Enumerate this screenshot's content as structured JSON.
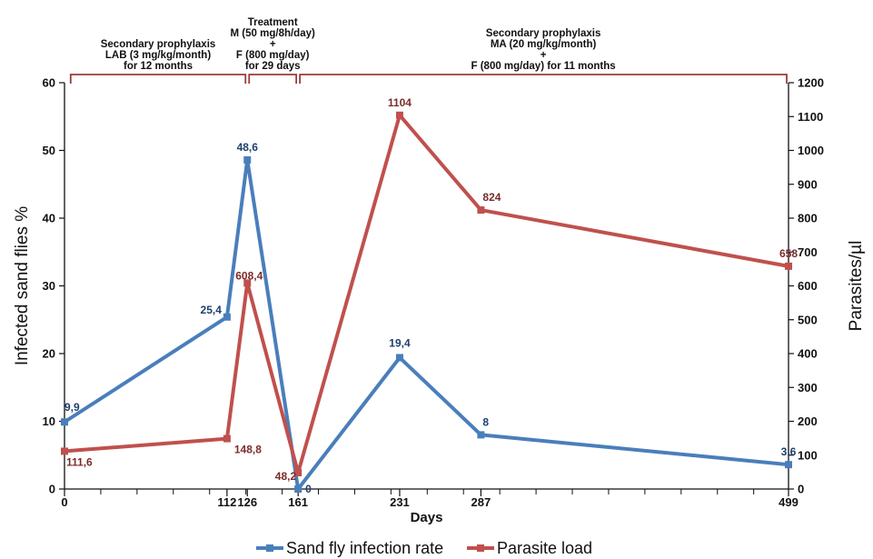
{
  "chart_data": {
    "type": "line",
    "xlabel": "Days",
    "ylabel_left": "Infected  sand flies %",
    "ylabel_right": "Parasites/µl",
    "x_ticks": [
      0,
      112,
      126,
      161,
      231,
      287,
      499
    ],
    "xlim": [
      0,
      499
    ],
    "ylim_left": [
      0,
      60
    ],
    "ylim_right": [
      0,
      1200
    ],
    "y_ticks_left": [
      0,
      10,
      20,
      30,
      40,
      50,
      60
    ],
    "y_ticks_right": [
      0,
      100,
      200,
      300,
      400,
      500,
      600,
      700,
      800,
      900,
      1000,
      1100,
      1200
    ],
    "legend_position": "bottom-center",
    "grid": false,
    "series": [
      {
        "name": "Sand fly infection rate",
        "axis": "left",
        "color": "#4a7ebb",
        "label_color": "#1f3f6e",
        "x": [
          0,
          112,
          126,
          161,
          231,
          287,
          499
        ],
        "y": [
          9.9,
          25.4,
          48.6,
          0,
          19.4,
          8,
          3.6
        ],
        "labels": [
          "9,9",
          "25,4",
          "48,6",
          "0",
          "19,4",
          "8",
          "3,6"
        ]
      },
      {
        "name": "Parasite load",
        "axis": "right",
        "color": "#c0504d",
        "label_color": "#7b2c2a",
        "x": [
          0,
          112,
          126,
          161,
          231,
          287,
          499
        ],
        "y": [
          111.6,
          148.8,
          608.4,
          48.2,
          1104,
          824,
          658
        ],
        "labels": [
          "111,6",
          "148,8",
          "608,4",
          "48,2",
          "1104",
          "824",
          "658"
        ]
      }
    ],
    "periods": [
      {
        "x_start": 3,
        "x_end": 126,
        "lines": [
          "Secondary prophylaxis",
          "LAB (3 mg/kg/month)",
          "for 12 months"
        ]
      },
      {
        "x_start": 126,
        "x_end": 161,
        "lines": [
          "Treatment",
          "M (50 mg/8h/day)",
          "+",
          "F (800 mg/day)",
          "for 29 days"
        ]
      },
      {
        "x_start": 161,
        "x_end": 499,
        "lines": [
          "Secondary prophylaxis",
          "MA (20 mg/kg/month)",
          "+",
          "F (800 mg/day) for 11 months"
        ]
      }
    ]
  }
}
